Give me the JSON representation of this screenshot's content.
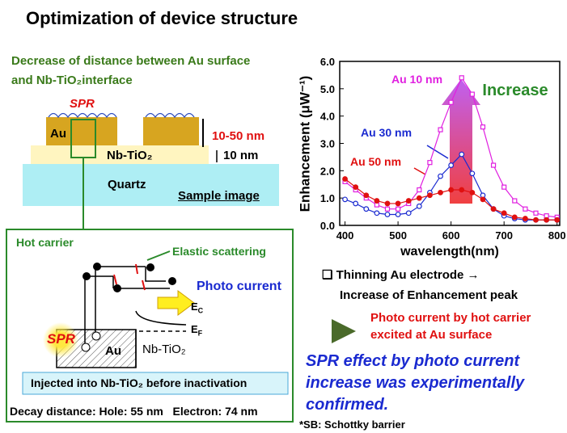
{
  "title": "Optimization of device structure",
  "left": {
    "heading": "Decrease of distance between Au surface and Nb-TiO₂interface",
    "sample": {
      "spr": "SPR",
      "au": "Au",
      "thickness": "10-50 nm",
      "layer": "Nb-TiO₂",
      "layer_thickness": "10 nm",
      "substrate": "Quartz",
      "caption": "Sample image"
    },
    "box": {
      "hot_carrier": "Hot carrier",
      "elastic": "Elastic scattering",
      "photo_current": "Photo current",
      "levels": [
        {
          "main": "E",
          "sub": "C"
        },
        {
          "main": "E",
          "sub": "F"
        }
      ],
      "spr": "SPR",
      "au": "Au",
      "layer": "Nb-TiO₂",
      "injected": "Injected into Nb-TiO₂ before inactivation",
      "decay": "Decay distance: Hole: 55 nm   Electron: 74 nm"
    }
  },
  "right": {
    "bullet": "❑ Thinning Au electrode →",
    "bullet2": "Increase of Enhancement peak",
    "finding": "Photo current by hot carrier excited at Au surface",
    "conclusion": "SPR effect by photo current increase was experimentally confirmed.",
    "footnote": "*SB: Schottky barrier"
  },
  "chart_data": {
    "type": "line",
    "x_label": "wavelength(nm)",
    "y_label": "Enhancement (μW⁻¹)",
    "annotation": "Increase",
    "x": [
      400,
      420,
      440,
      460,
      480,
      500,
      520,
      540,
      560,
      580,
      600,
      620,
      640,
      660,
      680,
      700,
      720,
      740,
      760,
      780,
      800
    ],
    "series": [
      {
        "name": "Au 10 nm",
        "color": "#e020e0",
        "marker": "square",
        "values": [
          1.6,
          1.3,
          1.0,
          0.75,
          0.6,
          0.6,
          0.8,
          1.3,
          2.3,
          3.5,
          4.5,
          5.4,
          4.8,
          3.6,
          2.2,
          1.4,
          0.9,
          0.6,
          0.45,
          0.35,
          0.3
        ]
      },
      {
        "name": "Au 30 nm",
        "color": "#1a2ad0",
        "marker": "circle",
        "values": [
          0.95,
          0.8,
          0.6,
          0.45,
          0.4,
          0.4,
          0.45,
          0.7,
          1.2,
          1.8,
          2.2,
          2.6,
          1.9,
          1.1,
          0.6,
          0.35,
          0.25,
          0.2,
          0.2,
          0.2,
          0.2
        ]
      },
      {
        "name": "Au 50 nm",
        "color": "#e01010",
        "marker": "filled",
        "values": [
          1.7,
          1.4,
          1.1,
          0.9,
          0.8,
          0.8,
          0.9,
          1.0,
          1.1,
          1.2,
          1.3,
          1.3,
          1.2,
          0.95,
          0.6,
          0.45,
          0.3,
          0.25,
          0.2,
          0.2,
          0.2
        ]
      }
    ],
    "xlim": [
      390,
      805
    ],
    "xticks": [
      400,
      500,
      600,
      700,
      800
    ],
    "ylim": [
      0,
      6
    ],
    "yticks": [
      {
        "value": 0,
        "label": "0.0"
      },
      {
        "value": 1,
        "label": "1.0"
      },
      {
        "value": 2,
        "label": "2.0"
      },
      {
        "value": 3,
        "label": "3.0"
      },
      {
        "value": 4,
        "label": "4.0"
      },
      {
        "value": 5,
        "label": "5.0"
      },
      {
        "value": 6,
        "label": "6.0"
      }
    ]
  }
}
